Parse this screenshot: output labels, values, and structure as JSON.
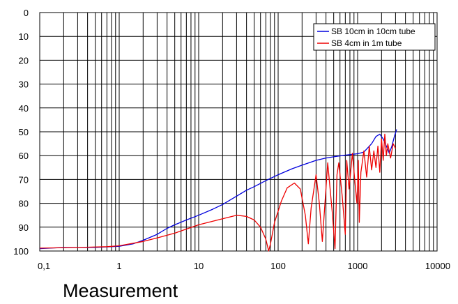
{
  "chart_data": {
    "type": "line",
    "title": "",
    "xlabel": "",
    "ylabel": "",
    "x_scale": "log",
    "xlim": [
      0.1,
      10000
    ],
    "ylim": [
      0,
      100
    ],
    "y_inverted": true,
    "grid": true,
    "legend_position": "top-right",
    "x_tick_labels": [
      "0,1",
      "1",
      "10",
      "100",
      "1000",
      "10000"
    ],
    "x_tick_values": [
      0.1,
      1,
      10,
      100,
      1000,
      10000
    ],
    "y_ticks": [
      0,
      10,
      20,
      30,
      40,
      50,
      60,
      70,
      80,
      90,
      100
    ],
    "series": [
      {
        "name": "SB 10cm in 10cm tube",
        "color": "#0000dd",
        "x": [
          0.1,
          0.2,
          0.5,
          1,
          1.5,
          2,
          3,
          4,
          5,
          7,
          10,
          15,
          20,
          30,
          40,
          50,
          70,
          100,
          150,
          200,
          300,
          400,
          500,
          700,
          1000,
          1200,
          1500,
          1700,
          1900,
          2100,
          2300,
          2500,
          2700,
          2900,
          3100
        ],
        "y": [
          99,
          98.5,
          98.5,
          98,
          97,
          95.5,
          93,
          90.5,
          89,
          87,
          85,
          82.5,
          80.5,
          77,
          74.5,
          73,
          70.5,
          68,
          65.5,
          64,
          62,
          61,
          60.5,
          59.8,
          59.2,
          58.5,
          55,
          52,
          51,
          53,
          56,
          59,
          56,
          52,
          49
        ]
      },
      {
        "name": "SB 4cm in 1m tube",
        "color": "#ee0000",
        "x": [
          0.1,
          0.3,
          0.7,
          1,
          2,
          3,
          5,
          10,
          20,
          30,
          40,
          50,
          60,
          70,
          76,
          80,
          90,
          110,
          130,
          160,
          190,
          220,
          240,
          260,
          300,
          330,
          360,
          420,
          480,
          520,
          550,
          580,
          640,
          700,
          730,
          780,
          860,
          930,
          980,
          1020,
          1050,
          1100,
          1200,
          1300,
          1400,
          1500,
          1600,
          1700,
          1800,
          1900,
          2000,
          2100,
          2200,
          2300,
          2400,
          2600,
          2800,
          3000
        ],
        "y": [
          98.8,
          98.5,
          98.2,
          97.8,
          96,
          94.5,
          92.5,
          89,
          86.5,
          85,
          85.5,
          87,
          90,
          95,
          100,
          97,
          88,
          79,
          73.5,
          71.5,
          74,
          85,
          97,
          82,
          68,
          80,
          96,
          63,
          84,
          99,
          68,
          63,
          77,
          93,
          62,
          74,
          59,
          72,
          80,
          62,
          88,
          67,
          58,
          69,
          56,
          66,
          58,
          65,
          56,
          67,
          53,
          62,
          51,
          60,
          55,
          61,
          55,
          57
        ]
      }
    ]
  },
  "caption": "Measurement"
}
